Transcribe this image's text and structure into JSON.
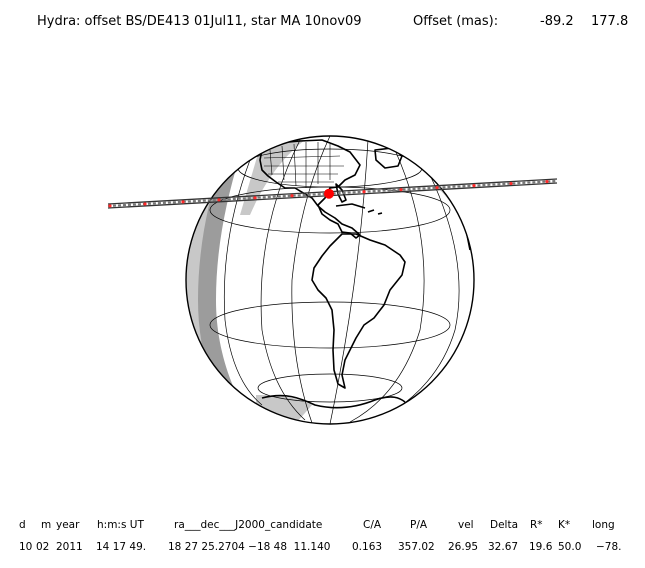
{
  "header": {
    "title": "Hydra: offset BS/DE413 01Jul11, star MA 10nov09",
    "offset_label": "Offset (mas):",
    "offset_ra": "-89.2",
    "offset_dec": "177.8"
  },
  "table": {
    "headers": [
      "d",
      "m",
      "year",
      "h:m:s UT",
      "ra___dec___J2000_candidate",
      "C/A",
      "P/A",
      "vel",
      "Delta",
      "R*",
      "K*",
      "long"
    ],
    "values": [
      "10",
      "02",
      "2011",
      "14 17 49.",
      "18 27 25.2704 −18 48  11.140",
      "0.163",
      "357.02",
      "26.95",
      "32.67",
      "19.6",
      "50.0",
      "−78."
    ]
  },
  "colors": {
    "track": "#333333",
    "track_dot": "#ff2a2a",
    "closest_point": "#ff0000",
    "night_shade": "#c8c8c8",
    "twilight_shade": "#9c9c9c"
  }
}
